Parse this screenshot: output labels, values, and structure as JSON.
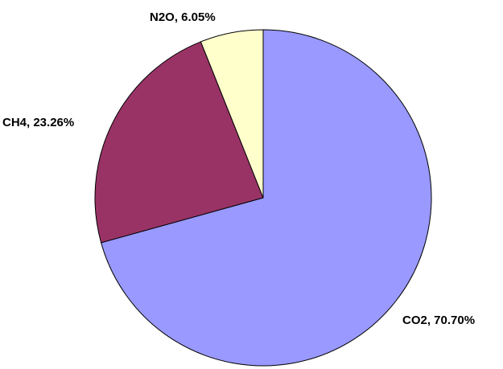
{
  "chart_data": {
    "type": "pie",
    "slices": [
      {
        "name": "CO2",
        "value": 70.7,
        "label": "CO2, 70.70%",
        "color": "#9999ff"
      },
      {
        "name": "CH4",
        "value": 23.26,
        "label": "CH4, 23.26%",
        "color": "#993366"
      },
      {
        "name": "N2O",
        "value": 6.05,
        "label": "N2O, 6.05%",
        "color": "#ffffcc"
      }
    ],
    "start": "top",
    "direction": "clockwise",
    "outline_color": "#000000"
  }
}
